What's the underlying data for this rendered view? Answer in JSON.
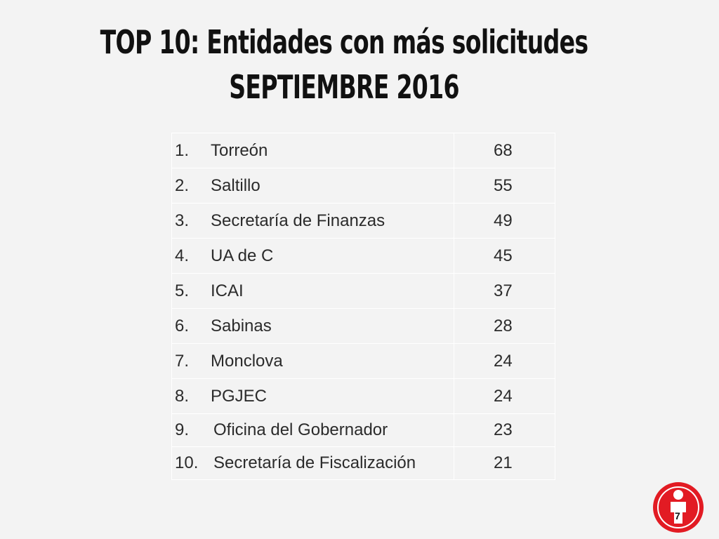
{
  "slide": {
    "title_line1": "TOP 10: Entidades con más solicitudes",
    "title_line2": "SEPTIEMBRE 2016",
    "page_number": "7",
    "logo_icon": "info-person-icon",
    "accent_color": "#e21b23"
  },
  "ranking": [
    {
      "index": "1.",
      "entity": "Torreón",
      "count": "68"
    },
    {
      "index": "2.",
      "entity": "Saltillo",
      "count": "55"
    },
    {
      "index": "3.",
      "entity": "Secretaría de Finanzas",
      "count": "49"
    },
    {
      "index": "4.",
      "entity": "UA de C",
      "count": "45"
    },
    {
      "index": "5.",
      "entity": "ICAI",
      "count": "37"
    },
    {
      "index": "6.",
      "entity": "Sabinas",
      "count": "28"
    },
    {
      "index": "7.",
      "entity": "Monclova",
      "count": "24"
    },
    {
      "index": "8.",
      "entity": "PGJEC",
      "count": "24"
    },
    {
      "index": "9.",
      "entity": "Oficina del Gobernador",
      "count": "23"
    },
    {
      "index": "10.",
      "entity": "Secretaría de Fiscalización",
      "count": "21"
    }
  ]
}
